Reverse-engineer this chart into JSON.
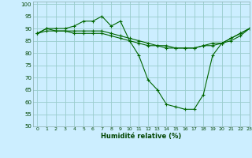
{
  "xlabel": "Humidité relative (%)",
  "bg_color": "#cceeff",
  "grid_color": "#99cccc",
  "line_color": "#006600",
  "xlim": [
    -0.5,
    23
  ],
  "ylim": [
    50,
    101
  ],
  "yticks": [
    50,
    55,
    60,
    65,
    70,
    75,
    80,
    85,
    90,
    95,
    100
  ],
  "xticks": [
    0,
    1,
    2,
    3,
    4,
    5,
    6,
    7,
    8,
    9,
    10,
    11,
    12,
    13,
    14,
    15,
    16,
    17,
    18,
    19,
    20,
    21,
    22,
    23
  ],
  "series1_x": [
    0,
    1,
    2,
    3,
    4,
    5,
    6,
    7,
    8,
    9,
    10,
    11,
    12,
    13,
    14,
    15,
    16,
    17,
    18,
    19,
    20,
    21,
    22,
    23
  ],
  "series1_y": [
    88,
    90,
    90,
    90,
    91,
    93,
    93,
    95,
    91,
    93,
    85,
    79,
    69,
    65,
    59,
    58,
    57,
    57,
    63,
    79,
    84,
    86,
    88,
    90
  ],
  "series2_x": [
    0,
    1,
    2,
    3,
    4,
    5,
    6,
    7,
    8,
    9,
    10,
    11,
    12,
    13,
    14,
    15,
    16,
    17,
    18,
    19,
    20,
    21,
    22,
    23
  ],
  "series2_y": [
    88,
    90,
    89,
    89,
    89,
    89,
    89,
    89,
    88,
    87,
    86,
    85,
    84,
    83,
    83,
    82,
    82,
    82,
    83,
    84,
    84,
    86,
    88,
    90
  ],
  "series3_x": [
    0,
    1,
    2,
    3,
    4,
    5,
    6,
    7,
    8,
    9,
    10,
    11,
    12,
    13,
    14,
    15,
    16,
    17,
    18,
    19,
    20,
    21,
    22,
    23
  ],
  "series3_y": [
    88,
    89,
    89,
    89,
    88,
    88,
    88,
    88,
    87,
    86,
    85,
    84,
    83,
    83,
    82,
    82,
    82,
    82,
    83,
    83,
    84,
    85,
    87,
    90
  ]
}
